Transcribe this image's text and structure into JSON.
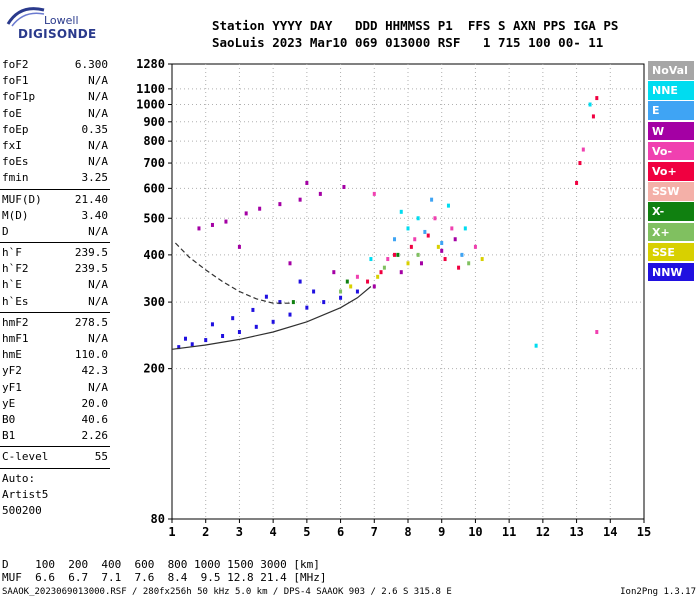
{
  "logo": {
    "line1": "Lowell",
    "line2": "DIGISONDE"
  },
  "header": {
    "line1": "Station YYYY DAY   DDD HHMMSS P1  FFS S AXN PPS IGA PS",
    "line2": "SaoLuis 2023 Mar10 069 013000 RSF   1 715 100 00- 11"
  },
  "params": {
    "g1": [
      [
        "foF2",
        "6.300"
      ],
      [
        "foF1",
        "N/A"
      ],
      [
        "foF1p",
        "N/A"
      ],
      [
        "foE",
        "N/A"
      ],
      [
        "foEp",
        "0.35"
      ],
      [
        "fxI",
        "N/A"
      ],
      [
        "foEs",
        "N/A"
      ],
      [
        "fmin",
        "3.25"
      ]
    ],
    "g2": [
      [
        "MUF(D)",
        "21.40"
      ],
      [
        "M(D)",
        "3.40"
      ],
      [
        "D",
        "N/A"
      ]
    ],
    "g3": [
      [
        "h`F",
        "239.5"
      ],
      [
        "h`F2",
        "239.5"
      ],
      [
        "h`E",
        "N/A"
      ],
      [
        "h`Es",
        "N/A"
      ]
    ],
    "g4": [
      [
        "hmF2",
        "278.5"
      ],
      [
        "hmF1",
        "N/A"
      ],
      [
        "hmE",
        "110.0"
      ],
      [
        "yF2",
        "42.3"
      ],
      [
        "yF1",
        "N/A"
      ],
      [
        "yE",
        "20.0"
      ],
      [
        "B0",
        "40.6"
      ],
      [
        "B1",
        "2.26"
      ]
    ],
    "g5": [
      [
        "C-level",
        "55"
      ]
    ],
    "auto": [
      "Auto:",
      "Artist5",
      "500200"
    ]
  },
  "legend": [
    {
      "label": "NoVal",
      "color": "#a6a6a6"
    },
    {
      "label": "NNE",
      "color": "#00dcf0"
    },
    {
      "label": "E",
      "color": "#3fa4f4"
    },
    {
      "label": "W",
      "color": "#a400a4"
    },
    {
      "label": "Vo-",
      "color": "#f040b0"
    },
    {
      "label": "Vo+",
      "color": "#f00040"
    },
    {
      "label": "SSW",
      "color": "#f4b0a8"
    },
    {
      "label": "X-",
      "color": "#108010"
    },
    {
      "label": "X+",
      "color": "#80c060"
    },
    {
      "label": "SSE",
      "color": "#d8d000"
    },
    {
      "label": "NNW",
      "color": "#2010e0"
    }
  ],
  "bottom": {
    "d_row": "D    100  200  400  600  800 1000 1500 3000 [km]",
    "muf_row": "MUF  6.6  6.7  7.1  7.6  8.4  9.5 12.8 21.4 [MHz]"
  },
  "footer": {
    "left": "SAAOK_2023069013000.RSF / 280fx256h 50 kHz 5.0 km / DPS-4 SAAOK 903 / 2.6 S 315.8 E",
    "right": "Ion2Png 1.3.17"
  },
  "chart_data": {
    "type": "scatter",
    "title": "",
    "xlabel": "",
    "ylabel": "",
    "xlim": [
      1,
      15
    ],
    "ylim": [
      80,
      1280
    ],
    "y_scale": "log",
    "x_ticks": [
      1,
      2,
      3,
      4,
      5,
      6,
      7,
      8,
      9,
      10,
      11,
      12,
      13,
      14,
      15
    ],
    "y_ticks": [
      80,
      200,
      300,
      400,
      500,
      600,
      700,
      800,
      900,
      1000,
      1100,
      1280
    ],
    "grid": "dotted",
    "legend_position": "right",
    "series": [
      {
        "color": "#2010e0",
        "points": [
          [
            1.2,
            228
          ],
          [
            1.6,
            232
          ],
          [
            2.0,
            238
          ],
          [
            2.5,
            244
          ],
          [
            3.0,
            250
          ],
          [
            3.5,
            258
          ],
          [
            4.0,
            266
          ],
          [
            4.5,
            278
          ],
          [
            5.0,
            290
          ],
          [
            5.5,
            300
          ],
          [
            6.0,
            308
          ],
          [
            6.5,
            320
          ],
          [
            2.2,
            262
          ],
          [
            2.8,
            272
          ],
          [
            3.4,
            286
          ],
          [
            4.2,
            300
          ],
          [
            5.2,
            320
          ],
          [
            1.4,
            240
          ],
          [
            3.8,
            310
          ],
          [
            4.8,
            340
          ]
        ]
      },
      {
        "color": "#a400a4",
        "points": [
          [
            1.8,
            470
          ],
          [
            2.2,
            480
          ],
          [
            2.6,
            490
          ],
          [
            3.2,
            515
          ],
          [
            3.6,
            530
          ],
          [
            4.2,
            545
          ],
          [
            4.8,
            560
          ],
          [
            5.4,
            580
          ],
          [
            6.1,
            605
          ],
          [
            5.0,
            620
          ],
          [
            7.0,
            330
          ],
          [
            7.8,
            360
          ],
          [
            8.4,
            380
          ],
          [
            9.0,
            410
          ],
          [
            9.4,
            440
          ],
          [
            3.0,
            420
          ],
          [
            4.5,
            380
          ],
          [
            5.8,
            360
          ]
        ]
      },
      {
        "color": "#f00040",
        "points": [
          [
            7.2,
            360
          ],
          [
            7.6,
            400
          ],
          [
            8.1,
            420
          ],
          [
            8.6,
            450
          ],
          [
            9.1,
            390
          ],
          [
            9.5,
            370
          ],
          [
            6.8,
            340
          ],
          [
            13.0,
            620
          ],
          [
            13.1,
            700
          ],
          [
            13.5,
            930
          ],
          [
            13.6,
            1040
          ]
        ]
      },
      {
        "color": "#f040b0",
        "points": [
          [
            6.5,
            350
          ],
          [
            7.4,
            390
          ],
          [
            8.2,
            440
          ],
          [
            8.8,
            500
          ],
          [
            9.3,
            470
          ],
          [
            10.0,
            420
          ],
          [
            7.0,
            580
          ],
          [
            13.2,
            760
          ],
          [
            13.6,
            250
          ]
        ]
      },
      {
        "color": "#00dcf0",
        "points": [
          [
            7.8,
            520
          ],
          [
            8.0,
            470
          ],
          [
            8.3,
            500
          ],
          [
            9.2,
            540
          ],
          [
            9.7,
            470
          ],
          [
            6.9,
            390
          ],
          [
            11.8,
            230
          ],
          [
            13.4,
            1000
          ]
        ]
      },
      {
        "color": "#3fa4f4",
        "points": [
          [
            7.6,
            440
          ],
          [
            8.5,
            460
          ],
          [
            9.0,
            430
          ],
          [
            9.6,
            400
          ],
          [
            8.7,
            560
          ]
        ]
      },
      {
        "color": "#d8d000",
        "points": [
          [
            6.3,
            330
          ],
          [
            7.1,
            350
          ],
          [
            8.0,
            380
          ],
          [
            8.9,
            420
          ],
          [
            10.2,
            390
          ]
        ]
      },
      {
        "color": "#80c060",
        "points": [
          [
            6.0,
            320
          ],
          [
            7.3,
            370
          ],
          [
            8.3,
            400
          ],
          [
            9.8,
            380
          ]
        ]
      },
      {
        "color": "#108010",
        "points": [
          [
            4.6,
            300
          ],
          [
            6.2,
            340
          ],
          [
            7.7,
            400
          ]
        ]
      }
    ],
    "curves": [
      {
        "style": "dashed",
        "points": [
          [
            1.1,
            430
          ],
          [
            1.5,
            395
          ],
          [
            2.0,
            365
          ],
          [
            2.5,
            340
          ],
          [
            3.0,
            320
          ],
          [
            3.5,
            306
          ],
          [
            4.0,
            298
          ],
          [
            4.5,
            298
          ]
        ]
      },
      {
        "style": "solid",
        "points": [
          [
            1.0,
            225
          ],
          [
            2.0,
            231
          ],
          [
            3.0,
            239
          ],
          [
            4.0,
            250
          ],
          [
            5.0,
            266
          ],
          [
            6.0,
            290
          ],
          [
            6.5,
            308
          ],
          [
            6.9,
            330
          ]
        ]
      }
    ]
  }
}
